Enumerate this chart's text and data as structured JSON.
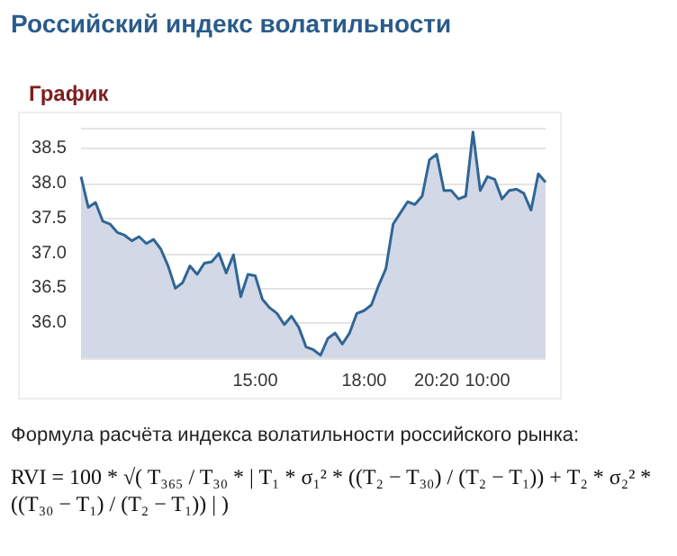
{
  "chart_data": {
    "type": "area",
    "title": "Российский индекс волатильности",
    "subtitle": "График",
    "categories": [
      null,
      null,
      null,
      null,
      null,
      null,
      null,
      null,
      null,
      null,
      null,
      null,
      null,
      null,
      null,
      null,
      null,
      null,
      null,
      null,
      null,
      null,
      null,
      null,
      "15:00",
      null,
      null,
      null,
      null,
      null,
      null,
      null,
      null,
      null,
      null,
      null,
      null,
      null,
      null,
      "18:00",
      null,
      null,
      null,
      null,
      null,
      null,
      null,
      null,
      null,
      "20:20",
      null,
      null,
      null,
      null,
      null,
      null,
      "10:00",
      null,
      null,
      null,
      null,
      null,
      null,
      null,
      null
    ],
    "series": [
      {
        "color": "#2f6696",
        "values": [
          38.1,
          37.66,
          37.73,
          37.46,
          37.42,
          37.3,
          37.26,
          37.18,
          37.24,
          37.14,
          37.2,
          37.06,
          36.82,
          36.5,
          36.58,
          36.82,
          36.7,
          36.86,
          36.88,
          37.0,
          36.72,
          36.98,
          36.38,
          36.7,
          36.68,
          36.34,
          36.22,
          36.14,
          35.98,
          36.1,
          35.94,
          35.66,
          35.62,
          35.54,
          35.78,
          35.86,
          35.7,
          35.86,
          36.14,
          36.18,
          36.26,
          36.54,
          36.78,
          37.42,
          37.58,
          37.74,
          37.7,
          37.82,
          38.34,
          38.42,
          37.9,
          37.9,
          37.78,
          37.82,
          38.74,
          37.9,
          38.1,
          38.06,
          37.78,
          37.9,
          37.92,
          37.86,
          37.62,
          38.14,
          38.02
        ]
      }
    ],
    "ylim": [
      35.5,
      38.8
    ],
    "yticks": [
      {
        "value": 36,
        "label": "36.0"
      },
      {
        "value": 36.5,
        "label": "36.5"
      },
      {
        "value": 37,
        "label": "37.0"
      },
      {
        "value": 37.5,
        "label": "37.5"
      },
      {
        "value": 38,
        "label": "38.0"
      },
      {
        "value": 38.5,
        "label": "38.5"
      }
    ],
    "grid": "y",
    "marker": "none",
    "line_style": "solid",
    "annotations": [
      "Формула расчёта индекса волатильности российского рынка:",
      "RVI = 100 * √( T₃₆₅ / T₃₀ * | T₁ * σ₁² * ((T₂ − T₃₀) / (T₂ − T₁)) + T₂ * σ₂² * ((T₃₀ − T₁) / (T₂ − T₁)) | )"
    ]
  }
}
